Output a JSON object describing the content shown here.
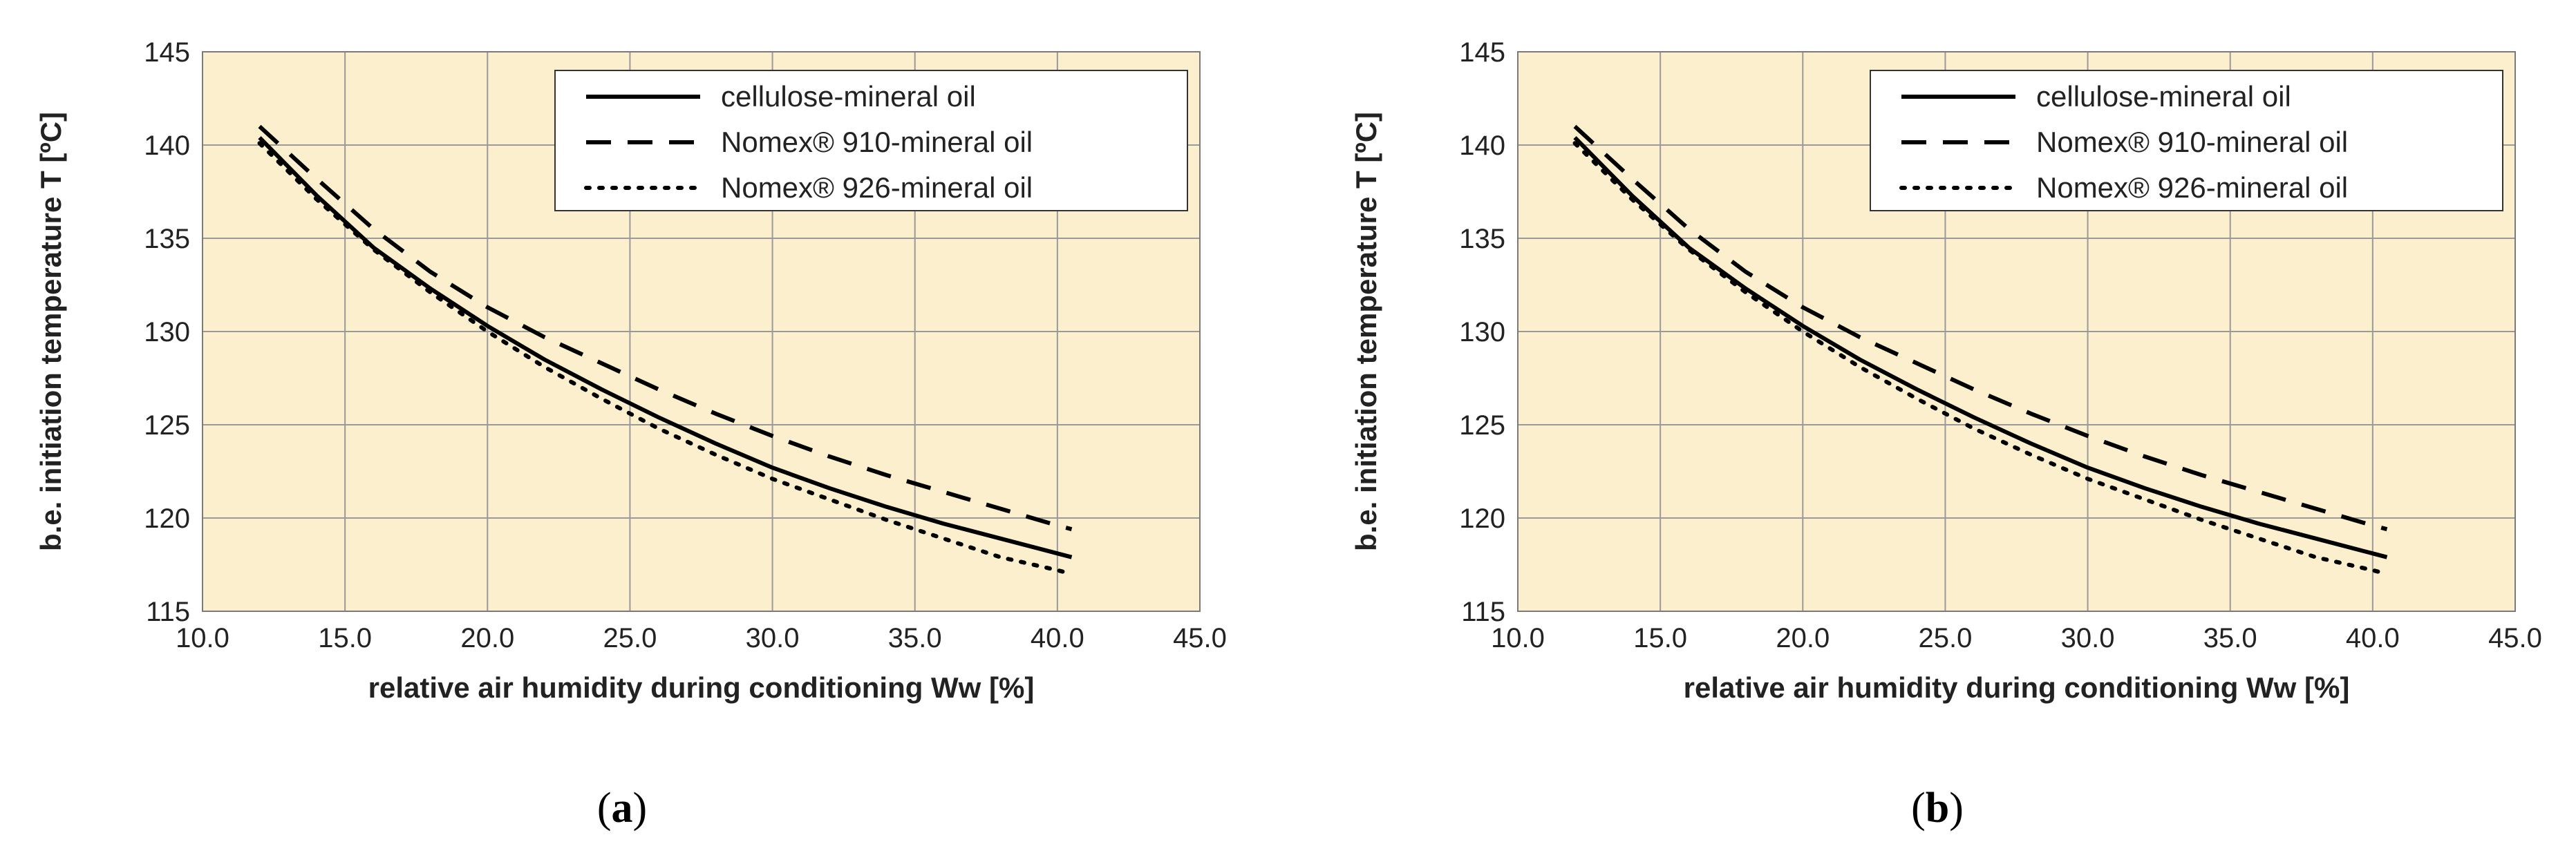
{
  "chart_data": [
    {
      "type": "line",
      "caption": {
        "open": "(",
        "letter": "a",
        "close": ")"
      },
      "xlabel": "relative air humidity during conditioning Ww [%]",
      "ylabel": "b.e. initiation temperature T [ºC]",
      "xlim": [
        10.0,
        45.0
      ],
      "ylim": [
        115,
        145
      ],
      "xticks": [
        "10.0",
        "15.0",
        "20.0",
        "25.0",
        "30.0",
        "35.0",
        "40.0",
        "45.0"
      ],
      "yticks": [
        "115",
        "120",
        "125",
        "130",
        "135",
        "140",
        "145"
      ],
      "grid": true,
      "legend_position": "top-right",
      "series": [
        {
          "name": "cellulose-mineral  oil",
          "style": "solid",
          "x": [
            12,
            14,
            16,
            18,
            20,
            22,
            24,
            26,
            28,
            30,
            32,
            34,
            36,
            38,
            40,
            40.5
          ],
          "y": [
            140.4,
            137.3,
            134.5,
            132.3,
            130.3,
            128.5,
            126.9,
            125.4,
            124.0,
            122.7,
            121.6,
            120.6,
            119.7,
            118.9,
            118.1,
            117.9
          ]
        },
        {
          "name": "Nomex® 910-mineral oil",
          "style": "dashed",
          "x": [
            12,
            14,
            16,
            18,
            20,
            22,
            24,
            26,
            28,
            30,
            32,
            34,
            36,
            38,
            40,
            40.5
          ],
          "y": [
            141.0,
            138.2,
            135.5,
            133.2,
            131.3,
            129.7,
            128.3,
            126.9,
            125.6,
            124.4,
            123.3,
            122.3,
            121.4,
            120.5,
            119.6,
            119.4
          ]
        },
        {
          "name": "Nomex® 926-mineral oil",
          "style": "dotted",
          "x": [
            12,
            14,
            16,
            18,
            20,
            22,
            24,
            26,
            28,
            30,
            32,
            34,
            36,
            38,
            40,
            40.5
          ],
          "y": [
            140.1,
            137.1,
            134.4,
            132.1,
            130.0,
            128.1,
            126.4,
            124.8,
            123.4,
            122.1,
            121.0,
            119.9,
            118.9,
            117.9,
            117.2,
            117.0
          ]
        }
      ],
      "colors": {
        "plot_bg": "#fcefce",
        "grid": "#9a9a9a",
        "line": "#000000"
      }
    },
    {
      "type": "line",
      "caption": {
        "open": "(",
        "letter": "b",
        "close": ")"
      },
      "xlabel": "relative air humidity during conditioning Ww [%]",
      "ylabel": "b.e. initiation temperature T [ºC]",
      "xlim": [
        10.0,
        45.0
      ],
      "ylim": [
        115,
        145
      ],
      "xticks": [
        "10.0",
        "15.0",
        "20.0",
        "25.0",
        "30.0",
        "35.0",
        "40.0",
        "45.0"
      ],
      "yticks": [
        "115",
        "120",
        "125",
        "130",
        "135",
        "140",
        "145"
      ],
      "grid": true,
      "legend_position": "top-right",
      "series": [
        {
          "name": "cellulose-mineral  oil",
          "style": "solid",
          "x": [
            12,
            14,
            16,
            18,
            20,
            22,
            24,
            26,
            28,
            30,
            32,
            34,
            36,
            38,
            40,
            40.5
          ],
          "y": [
            140.4,
            137.3,
            134.5,
            132.3,
            130.3,
            128.5,
            126.9,
            125.4,
            124.0,
            122.7,
            121.6,
            120.6,
            119.7,
            118.9,
            118.1,
            117.9
          ]
        },
        {
          "name": "Nomex® 910-mineral oil",
          "style": "dashed",
          "x": [
            12,
            14,
            16,
            18,
            20,
            22,
            24,
            26,
            28,
            30,
            32,
            34,
            36,
            38,
            40,
            40.5
          ],
          "y": [
            141.0,
            138.2,
            135.5,
            133.2,
            131.3,
            129.7,
            128.3,
            126.9,
            125.6,
            124.4,
            123.3,
            122.3,
            121.4,
            120.5,
            119.6,
            119.4
          ]
        },
        {
          "name": "Nomex® 926-mineral oil",
          "style": "dotted",
          "x": [
            12,
            14,
            16,
            18,
            20,
            22,
            24,
            26,
            28,
            30,
            32,
            34,
            36,
            38,
            40,
            40.5
          ],
          "y": [
            140.1,
            137.1,
            134.4,
            132.1,
            130.0,
            128.1,
            126.4,
            124.8,
            123.4,
            122.1,
            121.0,
            119.9,
            118.9,
            117.9,
            117.2,
            117.0
          ]
        }
      ],
      "colors": {
        "plot_bg": "#fcefce",
        "grid": "#9a9a9a",
        "line": "#000000"
      }
    }
  ]
}
